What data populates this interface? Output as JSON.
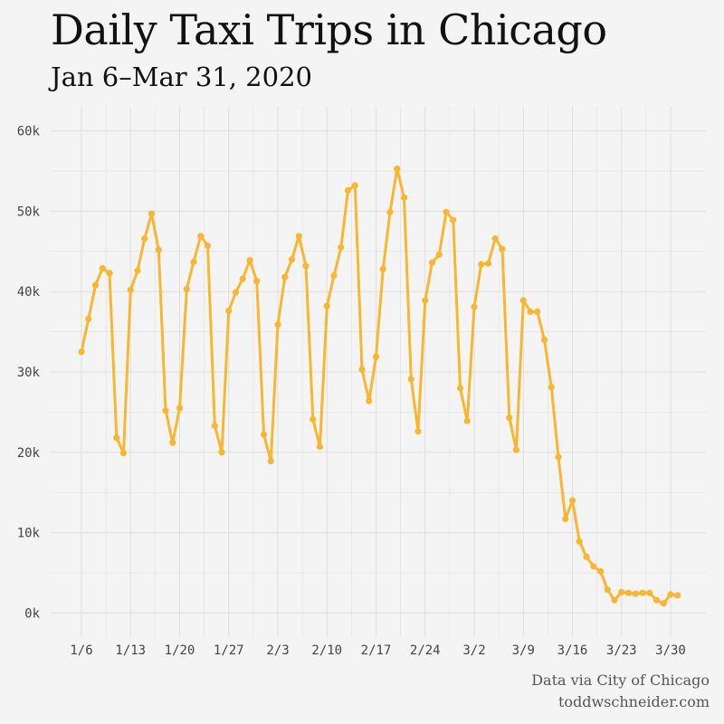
{
  "colors": {
    "line": "#f7b731",
    "grid": "#dedede",
    "background": "#f4f4f4"
  },
  "credits": {
    "line1": "Data via City of Chicago",
    "line2": "toddwschneider.com"
  },
  "chart_data": {
    "type": "line",
    "title": "Daily Taxi Trips in Chicago",
    "subtitle": "Jan 6–Mar 31, 2020",
    "xlabel": "",
    "ylabel": "",
    "x_start": "2020-01-06",
    "x_end": "2020-03-31",
    "ylim": [
      -3000,
      63000
    ],
    "grid": true,
    "legend": "none",
    "x_ticks": [
      "1/6",
      "1/13",
      "1/20",
      "1/27",
      "2/3",
      "2/10",
      "2/17",
      "2/24",
      "3/2",
      "3/9",
      "3/16",
      "3/23",
      "3/30"
    ],
    "y_ticks": [
      0,
      10000,
      20000,
      30000,
      40000,
      50000,
      60000
    ],
    "y_tick_labels": [
      "0k",
      "10k",
      "20k",
      "30k",
      "40k",
      "50k",
      "60k"
    ],
    "values": [
      32500,
      36600,
      40800,
      42900,
      42300,
      21800,
      19900,
      40200,
      42600,
      46600,
      49700,
      45200,
      25200,
      21200,
      25500,
      40300,
      43700,
      46900,
      45700,
      23300,
      20000,
      37600,
      39900,
      41600,
      43900,
      41300,
      22200,
      18900,
      35900,
      41800,
      44000,
      46900,
      43200,
      24100,
      20700,
      38200,
      42000,
      45500,
      52600,
      53200,
      30300,
      26400,
      31900,
      42800,
      49900,
      55300,
      51700,
      29100,
      22600,
      38900,
      43600,
      44600,
      49900,
      48900,
      28000,
      23900,
      38100,
      43400,
      43500,
      46600,
      45300,
      24300,
      20300,
      38900,
      37500,
      37500,
      34000,
      28100,
      19400,
      11700,
      14000,
      8900,
      7000,
      5800,
      5200,
      2900,
      1600,
      2600,
      2500,
      2400,
      2500,
      2500,
      1600,
      1200,
      2300,
      2200
    ]
  }
}
